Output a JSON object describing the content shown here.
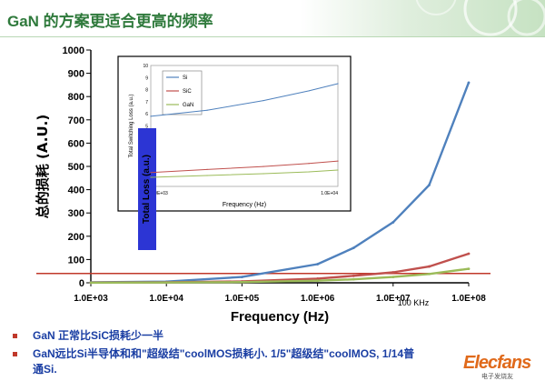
{
  "slide": {
    "title": "GaN 的方案更适合更高的频率",
    "bullets": [
      "GaN 正常比SiC损耗少一半",
      "GaN远比Si半导体和和\"超级结\"coolMOS损耗小. 1/5\"超级结\"coolMOS, 1/14普",
      "通Si."
    ],
    "logo_text": "Elecfans",
    "logo_sub": "电子发烧友",
    "colors": {
      "title": "#2f7a3c",
      "bullets": "#1a3ea3",
      "bullet_marker": "#c0392b"
    }
  },
  "chart_data": [
    {
      "type": "line",
      "xlabel": "Frequency (Hz)",
      "ylabel": "总的损耗 (A.U.)",
      "x_scale": "log",
      "xlim": [
        1000,
        100000000
      ],
      "ylim": [
        0,
        1000
      ],
      "xticks": [
        "1.0E+03",
        "1.0E+04",
        "1.0E+05",
        "1.0E+06",
        "1.0E+07",
        "1.0E+08"
      ],
      "yticks": [
        "0",
        "100",
        "200",
        "300",
        "400",
        "500",
        "600",
        "700",
        "800",
        "900",
        "1000"
      ],
      "annotation": "100 KHz",
      "reference_line_y": 40,
      "grid": false,
      "x": [
        1000,
        10000,
        100000,
        1000000,
        3000000,
        10000000,
        30000000,
        100000000
      ],
      "series": [
        {
          "name": "Si",
          "color": "#4f81bd",
          "values": [
            2,
            5,
            25,
            80,
            150,
            260,
            420,
            860
          ]
        },
        {
          "name": "SiC",
          "color": "#c0504d",
          "values": [
            1,
            2,
            6,
            18,
            30,
            45,
            70,
            125
          ]
        },
        {
          "name": "GaN",
          "color": "#9bbb59",
          "values": [
            0.5,
            1,
            3,
            9,
            15,
            25,
            38,
            60
          ]
        }
      ]
    },
    {
      "type": "line",
      "ylabel": "Total Switching Loss (a.u.)",
      "ylabel_overlay": "Total Loss (a.u.)",
      "xlabel": "Frequency (Hz)",
      "x_scale": "log",
      "xlim": [
        1000,
        10000
      ],
      "ylim": [
        0,
        10
      ],
      "yticks": [
        "10",
        "9",
        "8",
        "7",
        "6",
        "5",
        "4",
        "3",
        "2",
        "1"
      ],
      "xticks": [
        "1.0E+03",
        "1.0E+04"
      ],
      "legend": "top-left",
      "x": [
        1000,
        2000,
        4000,
        7000,
        10000
      ],
      "series": [
        {
          "name": "Si",
          "color": "#4f81bd",
          "values": [
            5.8,
            6.3,
            7.1,
            7.9,
            8.5
          ]
        },
        {
          "name": "SiC",
          "color": "#c0504d",
          "values": [
            1.15,
            1.4,
            1.65,
            1.9,
            2.1
          ]
        },
        {
          "name": "GaN",
          "color": "#9bbb59",
          "values": [
            0.75,
            0.9,
            1.05,
            1.2,
            1.35
          ]
        }
      ]
    }
  ]
}
